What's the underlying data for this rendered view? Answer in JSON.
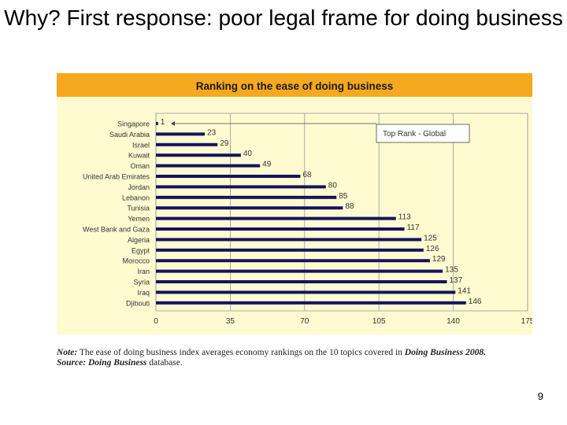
{
  "slide": {
    "title": "Why? First response: poor legal frame for doing business",
    "page_number": "9"
  },
  "note": {
    "label": "Note:",
    "text_before": "The ease of doing business index averages economy rankings on the 10 topics covered in",
    "publication": "Doing Business 2008.",
    "source_label": "Source:",
    "source_pub": "Doing Business",
    "source_rest": "database."
  },
  "colors": {
    "header_bg": "#f6a81e",
    "plot_bg": "#fefbd0",
    "bar": "#14145e",
    "header_text": "#1a1a1a"
  },
  "chart_data": {
    "type": "bar",
    "orientation": "horizontal",
    "title": "Ranking on the ease of doing business",
    "categories": [
      "Singapore",
      "Saudi Arabia",
      "Israel",
      "Kuwait",
      "Oman",
      "United Arab Emirates",
      "Jordan",
      "Lebanon",
      "Tunisia",
      "Yemen",
      "West Bank and Gaza",
      "Algeria",
      "Egypt",
      "Morocco",
      "Iran",
      "Syria",
      "Iraq",
      "Djibouti"
    ],
    "values": [
      1,
      23,
      29,
      40,
      49,
      68,
      80,
      85,
      88,
      113,
      117,
      125,
      126,
      129,
      135,
      137,
      141,
      146
    ],
    "xlim": [
      0,
      175
    ],
    "xticks": [
      0,
      35,
      70,
      105,
      140,
      175
    ],
    "grid": true,
    "annotation": "Top Rank - Global",
    "xlabel": "",
    "ylabel": ""
  }
}
